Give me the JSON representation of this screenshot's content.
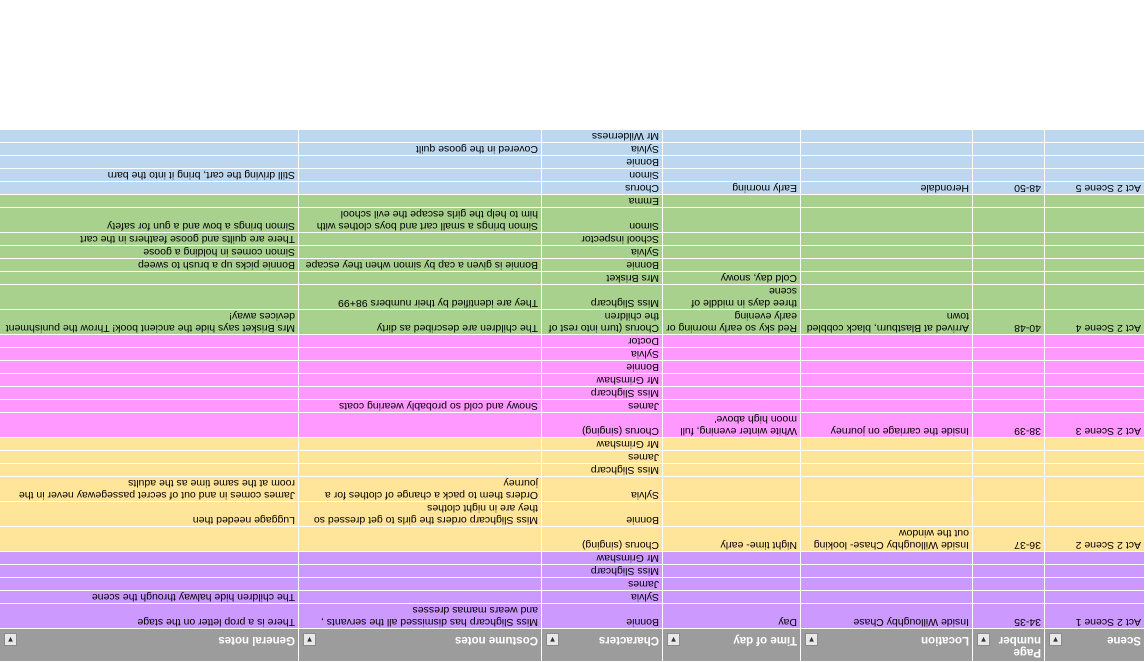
{
  "columns": [
    "Scene",
    "Page number",
    "Location",
    "Time of day",
    "Characters",
    "Costume notes",
    "General notes"
  ],
  "row_colors": {
    "purple": "#cc99ff",
    "yellow": "#ffe599",
    "pink": "#ff99ff",
    "green": "#a9d18e",
    "blue": "#bdd7ee",
    "header": "#9c9c9c"
  },
  "filter_icon": "dropdown-arrow-icon",
  "rows": [
    {
      "color": "purple",
      "cells": [
        "Act 2 Scene 1",
        "34-35",
        "Inside Willoughby Chase",
        "Day",
        "Bonnie",
        "Miss Slighcarp has dismissed all the servants , and wears mamas dresses",
        "There is a prop letter on the stage"
      ]
    },
    {
      "color": "purple",
      "cells": [
        "",
        "",
        "",
        "",
        "Sylvia",
        "",
        "The children hide halway through the scene"
      ]
    },
    {
      "color": "purple",
      "cells": [
        "",
        "",
        "",
        "",
        "James",
        "",
        ""
      ]
    },
    {
      "color": "purple",
      "cells": [
        "",
        "",
        "",
        "",
        "Miss Slighcarp",
        "",
        ""
      ]
    },
    {
      "color": "purple",
      "cells": [
        "",
        "",
        "",
        "",
        "Mr Grimshaw",
        "",
        ""
      ]
    },
    {
      "color": "yellow",
      "cells": [
        "Act 2 Scene 2",
        "36-37",
        "Inside Willoughby Chase- looking out the window",
        "Night time- early",
        "Chorus (singing)",
        "",
        ""
      ]
    },
    {
      "color": "yellow",
      "cells": [
        "",
        "",
        "",
        "",
        "Bonnie",
        "Miss Slighcarp orders the girls to get dressed so they are in night clothes",
        "Luggage needed then"
      ]
    },
    {
      "color": "yellow",
      "cells": [
        "",
        "",
        "",
        "",
        "Sylvia",
        "Orders them to pack a change of clothes for a journey",
        "James comes in and out of secret passegeway never in the room at the same time as the adults"
      ]
    },
    {
      "color": "yellow",
      "cells": [
        "",
        "",
        "",
        "",
        "Miss Slighcarp",
        "",
        ""
      ]
    },
    {
      "color": "yellow",
      "cells": [
        "",
        "",
        "",
        "",
        "James",
        "",
        ""
      ]
    },
    {
      "color": "yellow",
      "cells": [
        "",
        "",
        "",
        "",
        "Mr Grimshaw",
        "",
        ""
      ]
    },
    {
      "color": "pink",
      "cells": [
        "Act 2 Scene 3",
        "38-39",
        "Inside the carriage on journey",
        "White winter evening, full moon high above'",
        "Chorus (singing)",
        "",
        ""
      ]
    },
    {
      "color": "pink",
      "cells": [
        "",
        "",
        "",
        "",
        "James",
        "Snowy and cold so probably wearing coats",
        ""
      ]
    },
    {
      "color": "pink",
      "cells": [
        "",
        "",
        "",
        "",
        "Miss Slighcarp",
        "",
        ""
      ]
    },
    {
      "color": "pink",
      "cells": [
        "",
        "",
        "",
        "",
        "Mr Grimshaw",
        "",
        ""
      ]
    },
    {
      "color": "pink",
      "cells": [
        "",
        "",
        "",
        "",
        "Bonnie",
        "",
        ""
      ]
    },
    {
      "color": "pink",
      "cells": [
        "",
        "",
        "",
        "",
        "Sylvia",
        "",
        ""
      ]
    },
    {
      "color": "pink",
      "cells": [
        "",
        "",
        "",
        "",
        "Doctor",
        "",
        ""
      ]
    },
    {
      "color": "green",
      "cells": [
        "Act 2 Scene 4",
        "40-48",
        "Arrived at Blastburn, black cobbled town",
        "Red sky so early morning or early evening",
        "Chorus (turn into rest of the children",
        "The children are described as dirty",
        "Mrs Brisket says hide the ancient book! Throw the punishment devices away!"
      ]
    },
    {
      "color": "green",
      "cells": [
        "",
        "",
        "",
        "three days in middle of scene",
        "Miss Slighcarp",
        "They are identified by their numbers 98+99",
        ""
      ]
    },
    {
      "color": "green",
      "cells": [
        "",
        "",
        "",
        "Cold day, snowy",
        "Mrs Brisket",
        "",
        ""
      ]
    },
    {
      "color": "green",
      "cells": [
        "",
        "",
        "",
        "",
        "Bonnie",
        "Bonnie is given a cap by simon when they escape",
        "Bonnie picks up a brush to sweep"
      ]
    },
    {
      "color": "green",
      "cells": [
        "",
        "",
        "",
        "",
        "Sylvia",
        "",
        "Simon comes in holding a goose"
      ]
    },
    {
      "color": "green",
      "cells": [
        "",
        "",
        "",
        "",
        "School inspector",
        "",
        "There are quilts and goose feathers in the cart"
      ]
    },
    {
      "color": "green",
      "cells": [
        "",
        "",
        "",
        "",
        "Simon",
        "Simon brings a small cart and boys clothes with him to help the girls escape the evil school",
        "Simon brings a bow and a gun for safety"
      ]
    },
    {
      "color": "green",
      "cells": [
        "",
        "",
        "",
        "",
        "Emma",
        "",
        ""
      ]
    },
    {
      "color": "blue",
      "cells": [
        "Act 2 Scene 5",
        "48-50",
        "Herondale",
        "Early morning",
        "Chorus",
        "",
        ""
      ]
    },
    {
      "color": "blue",
      "cells": [
        "",
        "",
        "",
        "",
        "Simon",
        "",
        "Still driving the cart, bring it into the barn"
      ]
    },
    {
      "color": "blue",
      "cells": [
        "",
        "",
        "",
        "",
        "Bonnie",
        "",
        ""
      ]
    },
    {
      "color": "blue",
      "cells": [
        "",
        "",
        "",
        "",
        "Sylvia",
        "Covered in the goose quilt",
        ""
      ]
    },
    {
      "color": "blue",
      "cells": [
        "",
        "",
        "",
        "",
        "Mr Wilderness",
        "",
        ""
      ]
    }
  ]
}
